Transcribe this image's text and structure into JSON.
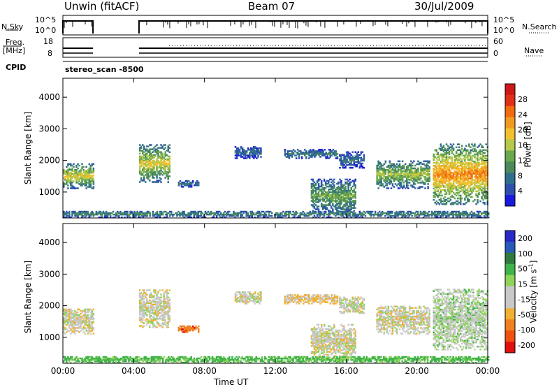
{
  "header": {
    "station": "Unwin  (fitACF)",
    "beam": "Beam 07",
    "date": "30/Jul/2009"
  },
  "strip_labels": {
    "nsky": "N.Sky",
    "nsearch": "N.Search",
    "freq": "Freq.",
    "freq_unit": "[MHz]",
    "nave": "Nave",
    "cpid": "CPID",
    "program": "stereo_scan  -8500",
    "nsky_ticks": [
      "10^5",
      "10^0"
    ],
    "nsearch_ticks": [
      "10^5",
      "10^0"
    ],
    "freq_ticks": [
      "18",
      "8"
    ],
    "nave_ticks": [
      "60",
      "0"
    ]
  },
  "colors": {
    "power_scale": [
      "#1a1adc",
      "#2e4fb0",
      "#2f6e8e",
      "#4b8a5a",
      "#6aa84f",
      "#b5c94a",
      "#f2c12e",
      "#f29a1f",
      "#f26a10",
      "#e0301a",
      "#d01818"
    ],
    "velocity_scale": [
      "#2828c8",
      "#2a5ab8",
      "#2f7a3c",
      "#3fb34a",
      "#8fd45a",
      "#c8c8c8",
      "#c8c8c8",
      "#f0b030",
      "#f08020",
      "#f05010",
      "#e01010"
    ]
  },
  "chart_data": [
    {
      "type": "heatmap",
      "title": "",
      "xlabel": "Time UT",
      "ylabel": "Slant Range [km]",
      "xlim": [
        0,
        24
      ],
      "ylim": [
        180,
        4600
      ],
      "x_ticks": [
        "00:00",
        "04:00",
        "08:00",
        "12:00",
        "16:00",
        "20:00",
        "00:00"
      ],
      "y_ticks": [
        1000,
        2000,
        3000,
        4000
      ],
      "colorbar": {
        "label": "Power [dB]",
        "ticks": [
          4,
          8,
          12,
          16,
          20,
          24,
          28
        ],
        "range": [
          0,
          32
        ]
      },
      "echo_regions": [
        {
          "t0": 0.0,
          "t1": 1.7,
          "r0": 1100,
          "r1": 1900,
          "level": 14
        },
        {
          "t0": 4.3,
          "t1": 6.0,
          "r0": 1300,
          "r1": 2500,
          "level": 14
        },
        {
          "t0": 6.5,
          "t1": 7.7,
          "r0": 1150,
          "r1": 1350,
          "level": 6
        },
        {
          "t0": 9.7,
          "t1": 11.2,
          "r0": 2050,
          "r1": 2450,
          "level": 6
        },
        {
          "t0": 12.5,
          "t1": 15.5,
          "r0": 2050,
          "r1": 2350,
          "level": 7
        },
        {
          "t0": 15.6,
          "t1": 17.0,
          "r0": 1750,
          "r1": 2250,
          "level": 6
        },
        {
          "t0": 14.0,
          "t1": 16.5,
          "r0": 300,
          "r1": 1400,
          "level": 10
        },
        {
          "t0": 17.7,
          "t1": 20.7,
          "r0": 1100,
          "r1": 2000,
          "level": 12
        },
        {
          "t0": 20.9,
          "t1": 24.0,
          "r0": 600,
          "r1": 2500,
          "level": 18
        },
        {
          "t0": 0.0,
          "t1": 24.0,
          "r0": 180,
          "r1": 400,
          "level": 8
        }
      ]
    },
    {
      "type": "heatmap",
      "title": "",
      "xlabel": "Time UT",
      "ylabel": "Slant Range [km]",
      "xlim": [
        0,
        24
      ],
      "ylim": [
        180,
        4600
      ],
      "x_ticks": [
        "00:00",
        "04:00",
        "08:00",
        "12:00",
        "16:00",
        "20:00",
        "00:00"
      ],
      "y_ticks": [
        1000,
        2000,
        3000,
        4000
      ],
      "colorbar": {
        "label": "Velocity [m s",
        "label_sup": "-1",
        "label_end": "]",
        "ticks": [
          200,
          100,
          50,
          15,
          -15,
          -50,
          -100,
          -200
        ]
      },
      "echo_regions": [
        {
          "t0": 0.0,
          "t1": 1.7,
          "r0": 1100,
          "r1": 1900,
          "velocity": 0
        },
        {
          "t0": 4.3,
          "t1": 6.0,
          "r0": 1300,
          "r1": 2500,
          "velocity": 0
        },
        {
          "t0": 6.5,
          "t1": 7.7,
          "r0": 1150,
          "r1": 1350,
          "velocity": -80
        },
        {
          "t0": 9.7,
          "t1": 11.2,
          "r0": 2050,
          "r1": 2450,
          "velocity": 0
        },
        {
          "t0": 12.5,
          "t1": 15.5,
          "r0": 2050,
          "r1": 2350,
          "velocity": -20
        },
        {
          "t0": 15.6,
          "t1": 17.0,
          "r0": 1750,
          "r1": 2250,
          "velocity": 0
        },
        {
          "t0": 14.0,
          "t1": 16.5,
          "r0": 300,
          "r1": 1400,
          "velocity": 0
        },
        {
          "t0": 17.7,
          "t1": 20.7,
          "r0": 1100,
          "r1": 2000,
          "velocity": 0
        },
        {
          "t0": 20.9,
          "t1": 24.0,
          "r0": 600,
          "r1": 2500,
          "velocity": 10
        },
        {
          "t0": 0.0,
          "t1": 24.0,
          "r0": 180,
          "r1": 400,
          "velocity": 40
        }
      ]
    }
  ]
}
